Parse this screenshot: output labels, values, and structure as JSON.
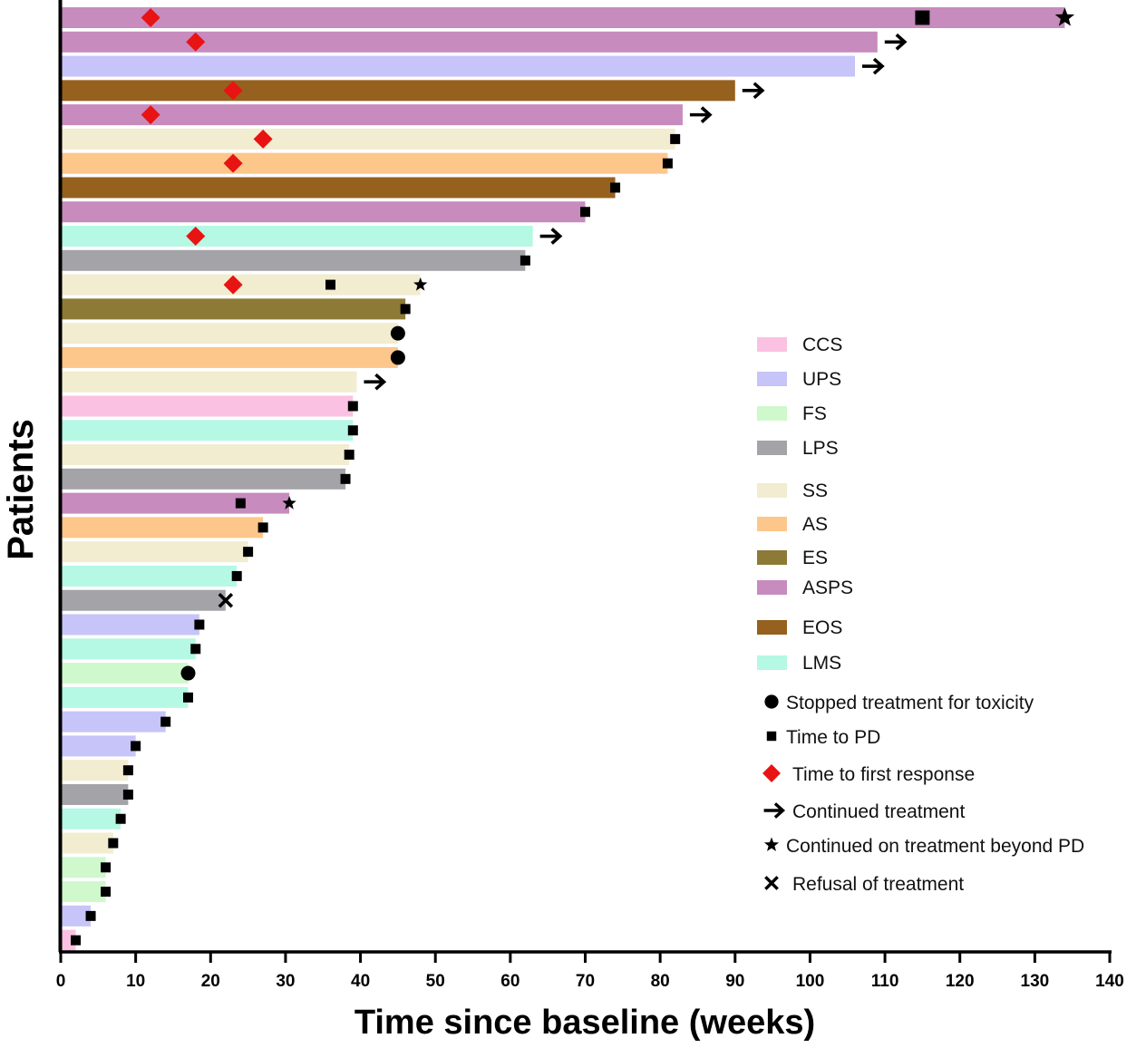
{
  "chart_data": {
    "type": "bar",
    "orientation": "horizontal",
    "title": "",
    "xlabel": "Time since baseline (weeks)",
    "ylabel": "Patients",
    "xlim": [
      0,
      140
    ],
    "xticks": [
      0,
      10,
      20,
      30,
      40,
      50,
      60,
      70,
      80,
      90,
      100,
      110,
      120,
      130,
      140
    ],
    "subtypes": [
      {
        "key": "CCS",
        "label": "CCS",
        "color": "#fbc1e2"
      },
      {
        "key": "UPS",
        "label": "UPS",
        "color": "#c6c4f8"
      },
      {
        "key": "FS",
        "label": "FS",
        "color": "#cff8cc"
      },
      {
        "key": "LPS",
        "label": "LPS",
        "color": "#a3a3a8"
      },
      {
        "key": "SS",
        "label": "SS",
        "color": "#f2ecd0"
      },
      {
        "key": "AS",
        "label": "AS",
        "color": "#fdc68a"
      },
      {
        "key": "ES",
        "label": "ES",
        "color": "#8c7a36"
      },
      {
        "key": "ASPS",
        "label": "ASPS",
        "color": "#c78bbe"
      },
      {
        "key": "EOS",
        "label": "EOS",
        "color": "#96601e"
      },
      {
        "key": "LMS",
        "label": "LMS",
        "color": "#b5f8e4"
      }
    ],
    "markers": [
      {
        "key": "toxicity",
        "label": "Stopped treatment for toxicity",
        "shape": "circle",
        "color": "#000000"
      },
      {
        "key": "pd",
        "label": "Time to PD",
        "shape": "square",
        "color": "#000000"
      },
      {
        "key": "response",
        "label": "Time to  first response",
        "shape": "diamond",
        "color": "#e81313"
      },
      {
        "key": "continued",
        "label": "Continued treatment",
        "shape": "arrow",
        "color": "#000000"
      },
      {
        "key": "beyond_pd",
        "label": "Continued on treatment beyond PD",
        "shape": "star",
        "color": "#000000"
      },
      {
        "key": "refusal",
        "label": "Refusal of treatment",
        "shape": "cross",
        "color": "#000000"
      }
    ],
    "patients": [
      {
        "subtype": "ASPS",
        "weeks": 134,
        "response": 12,
        "pd": 115,
        "beyond_pd": 134
      },
      {
        "subtype": "ASPS",
        "weeks": 109,
        "response": 18,
        "continued": true
      },
      {
        "subtype": "UPS",
        "weeks": 106,
        "continued": true
      },
      {
        "subtype": "EOS",
        "weeks": 90,
        "response": 23,
        "continued": true
      },
      {
        "subtype": "ASPS",
        "weeks": 83,
        "response": 12,
        "continued": true
      },
      {
        "subtype": "SS",
        "weeks": 82,
        "response": 27,
        "pd": 82
      },
      {
        "subtype": "AS",
        "weeks": 81,
        "response": 23,
        "pd": 81
      },
      {
        "subtype": "EOS",
        "weeks": 74,
        "pd": 74
      },
      {
        "subtype": "ASPS",
        "weeks": 70,
        "pd": 70
      },
      {
        "subtype": "LMS",
        "weeks": 63,
        "response": 18,
        "continued": true
      },
      {
        "subtype": "LPS",
        "weeks": 62,
        "pd": 62
      },
      {
        "subtype": "SS",
        "weeks": 48,
        "response": 23,
        "pd": 36,
        "beyond_pd": 48
      },
      {
        "subtype": "ES",
        "weeks": 46,
        "pd": 46
      },
      {
        "subtype": "SS",
        "weeks": 45,
        "toxicity": 45
      },
      {
        "subtype": "AS",
        "weeks": 45,
        "toxicity": 45
      },
      {
        "subtype": "SS",
        "weeks": 39.5,
        "continued": true
      },
      {
        "subtype": "CCS",
        "weeks": 39,
        "pd": 39
      },
      {
        "subtype": "LMS",
        "weeks": 39,
        "pd": 39
      },
      {
        "subtype": "SS",
        "weeks": 38.5,
        "pd": 38.5
      },
      {
        "subtype": "LPS",
        "weeks": 38,
        "pd": 38
      },
      {
        "subtype": "ASPS",
        "weeks": 30.5,
        "pd": 24,
        "beyond_pd": 30.5
      },
      {
        "subtype": "AS",
        "weeks": 27,
        "pd": 27
      },
      {
        "subtype": "SS",
        "weeks": 25,
        "pd": 25
      },
      {
        "subtype": "LMS",
        "weeks": 23.5,
        "pd": 23.5
      },
      {
        "subtype": "LPS",
        "weeks": 22,
        "refusal": 22
      },
      {
        "subtype": "UPS",
        "weeks": 18.5,
        "pd": 18.5
      },
      {
        "subtype": "LMS",
        "weeks": 18,
        "pd": 18
      },
      {
        "subtype": "FS",
        "weeks": 17,
        "toxicity": 17
      },
      {
        "subtype": "LMS",
        "weeks": 17,
        "pd": 17
      },
      {
        "subtype": "UPS",
        "weeks": 14,
        "pd": 14
      },
      {
        "subtype": "UPS",
        "weeks": 10,
        "pd": 10
      },
      {
        "subtype": "SS",
        "weeks": 9,
        "pd": 9
      },
      {
        "subtype": "LPS",
        "weeks": 9,
        "pd": 9
      },
      {
        "subtype": "LMS",
        "weeks": 8,
        "pd": 8
      },
      {
        "subtype": "SS",
        "weeks": 7,
        "pd": 7
      },
      {
        "subtype": "FS",
        "weeks": 6,
        "pd": 6
      },
      {
        "subtype": "FS",
        "weeks": 6,
        "pd": 6
      },
      {
        "subtype": "UPS",
        "weeks": 4,
        "pd": 4
      },
      {
        "subtype": "CCS",
        "weeks": 2,
        "pd": 2
      }
    ]
  }
}
